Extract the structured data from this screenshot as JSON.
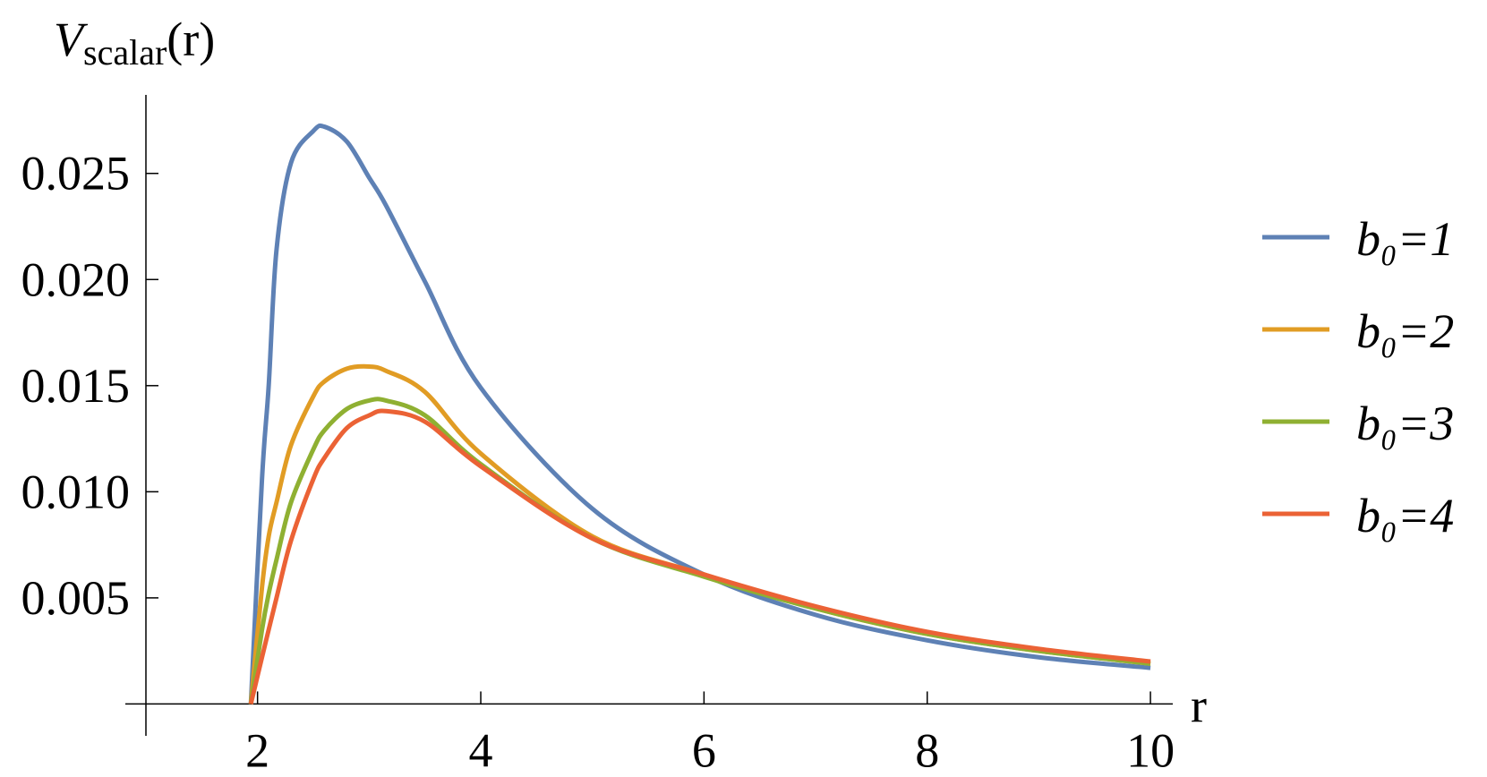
{
  "chart_data": {
    "type": "line",
    "y_label": {
      "main": "V",
      "sub": "scalar",
      "suffix": "(r)"
    },
    "x_label": "r",
    "x": [
      1.94,
      2.04,
      2.1,
      2.17,
      2.3,
      2.5,
      2.6,
      2.8,
      3.0,
      3.15,
      3.5,
      4,
      5,
      6,
      7,
      8,
      9,
      10
    ],
    "series": [
      {
        "name": "b₀=1",
        "color": "#5e81b5",
        "values": [
          0,
          0.0106,
          0.015,
          0.0214,
          0.0255,
          0.027,
          0.0272,
          0.0265,
          0.0248,
          0.0235,
          0.0199,
          0.0149,
          0.0092,
          0.0061,
          0.0042,
          0.003,
          0.0022,
          0.0017
        ]
      },
      {
        "name": "b₀=2",
        "color": "#e19c24",
        "values": [
          0,
          0.0055,
          0.0079,
          0.0095,
          0.0122,
          0.0145,
          0.0152,
          0.0158,
          0.0159,
          0.0157,
          0.0147,
          0.0118,
          0.0079,
          0.0061,
          0.0045,
          0.0033,
          0.0025,
          0.0019
        ]
      },
      {
        "name": "b₀=3",
        "color": "#8fb032",
        "values": [
          0,
          0.0035,
          0.0052,
          0.0068,
          0.0095,
          0.012,
          0.0129,
          0.0139,
          0.0143,
          0.0143,
          0.0136,
          0.0113,
          0.0078,
          0.006,
          0.0045,
          0.0033,
          0.0025,
          0.0019
        ]
      },
      {
        "name": "b₀=4",
        "color": "#eb6235",
        "values": [
          0,
          0.0022,
          0.0035,
          0.005,
          0.0077,
          0.0106,
          0.0116,
          0.013,
          0.0136,
          0.0138,
          0.0133,
          0.0112,
          0.0078,
          0.0061,
          0.0046,
          0.0034,
          0.0026,
          0.002
        ]
      }
    ],
    "xlim": [
      1,
      10.2
    ],
    "ylim": [
      -0.0015,
      0.0287
    ],
    "xticks": [
      2,
      4,
      6,
      8,
      10
    ],
    "yticks": [
      0.005,
      {
        "value": 0.01,
        "label": "0.010"
      },
      0.015,
      {
        "value": 0.02,
        "label": "0.020"
      },
      0.025
    ]
  }
}
